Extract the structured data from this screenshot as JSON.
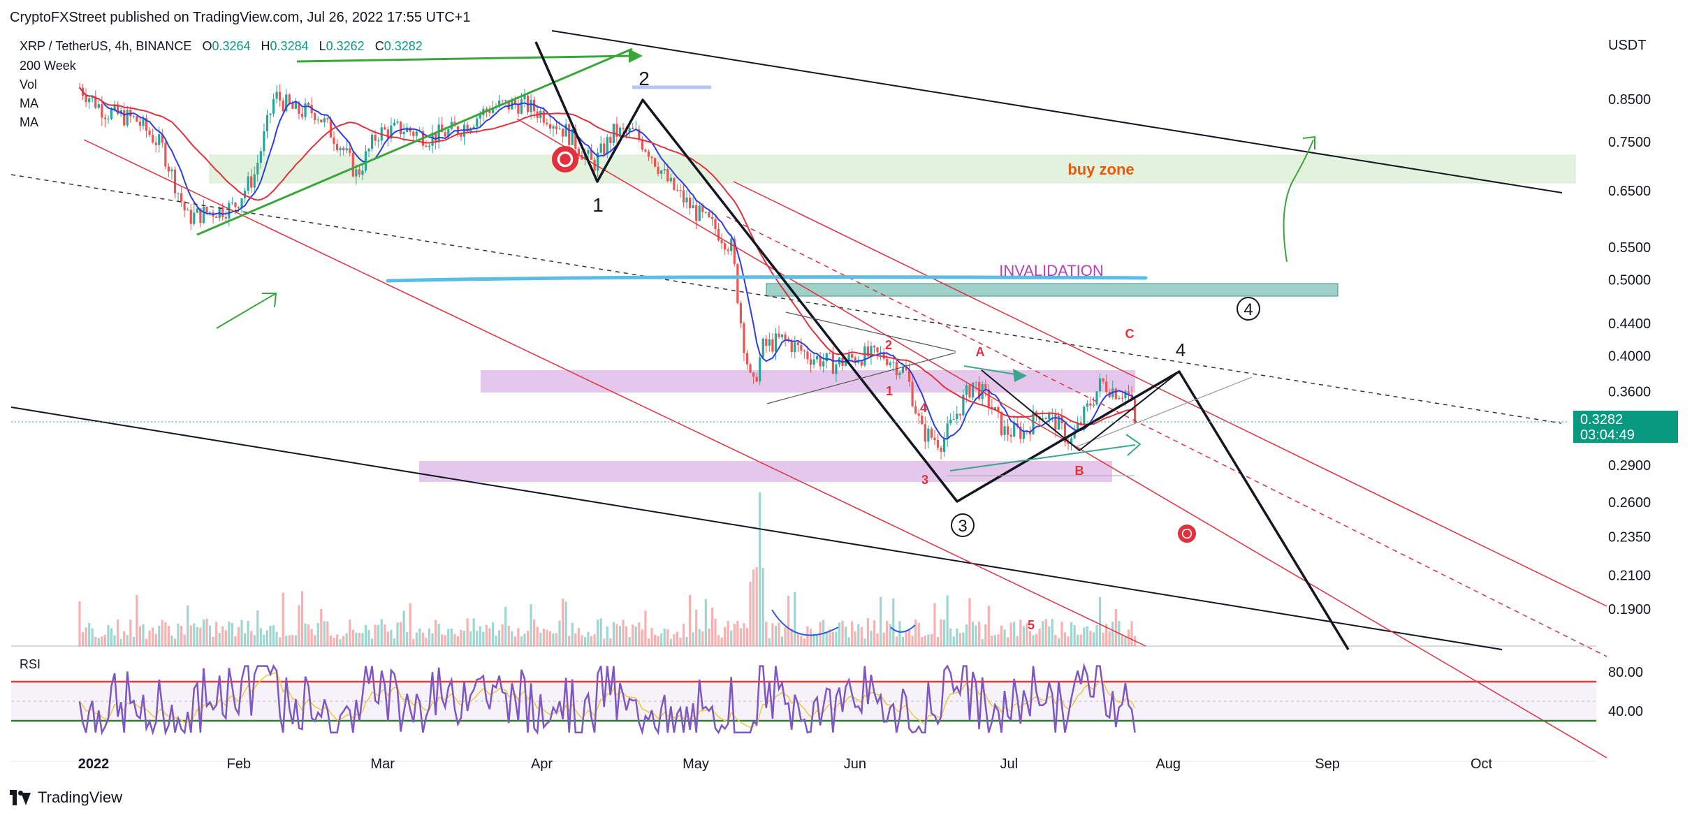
{
  "header": {
    "publisher_line": "CryptoFXStreet published on TradingView.com, Jul 26, 2022 17:55 UTC+1"
  },
  "legend": {
    "symbol": "XRP / TetherUS, 4h, BINANCE",
    "open_label": "O",
    "open": "0.3264",
    "high_label": "H",
    "high": "0.3284",
    "low_label": "L",
    "low": "0.3262",
    "close_label": "C",
    "close": "0.3282",
    "indicators": [
      "200 Week",
      "Vol",
      "MA",
      "MA"
    ]
  },
  "price_axis": {
    "currency": "USDT",
    "ticks": [
      "0.8500",
      "0.7500",
      "0.6500",
      "0.5500",
      "0.5000",
      "0.4400",
      "0.4000",
      "0.3600",
      "0.2900",
      "0.2600",
      "0.2350",
      "0.2100",
      "0.1900"
    ]
  },
  "current_price": {
    "value": "0.3282",
    "countdown": "03:04:49"
  },
  "time_axis": {
    "labels": [
      "2022",
      "Feb",
      "Mar",
      "Apr",
      "May",
      "Jun",
      "Jul",
      "Aug",
      "Sep",
      "Oct"
    ]
  },
  "rsi": {
    "label": "RSI",
    "ticks": [
      "80.00",
      "40.00"
    ],
    "upper_band": 70,
    "lower_band": 30
  },
  "annotations": {
    "buy_zone": "buy zone",
    "invalidation": "INVALIDATION",
    "wave_1": "1",
    "wave_2": "2",
    "wave_3_circled": "3",
    "wave_4_circled": "4",
    "wave_4": "4",
    "sub_a": "A",
    "sub_b": "B",
    "sub_c": "C",
    "small_1": "1",
    "small_2": "2",
    "small_3": "3",
    "small_4": "4",
    "small_5": "5"
  },
  "footer": {
    "brand": "TradingView"
  },
  "colors": {
    "up": "#26a69a",
    "down": "#ef5350",
    "ma_blue": "#2b3ee0",
    "ma_red": "#e0313d",
    "buy_zone_fill": "#e3f2dd",
    "invalidation_line": "#5bbce4",
    "teal_box": "#9fd1c8",
    "magenta_box": "#e6c7ec",
    "rsi_line": "#7e57c2",
    "green": "#3aa63a",
    "orange": "#e8590c"
  },
  "chart_data": {
    "type": "candlestick",
    "title": "XRP / TetherUS, 4h, BINANCE",
    "ylabel": "USDT",
    "y_scale": "log",
    "ylim": [
      0.17,
      0.96
    ],
    "price_path": [
      [
        "2022-01-01",
        0.88
      ],
      [
        "2022-01-06",
        0.82
      ],
      [
        "2022-01-12",
        0.8
      ],
      [
        "2022-01-17",
        0.74
      ],
      [
        "2022-01-22",
        0.6
      ],
      [
        "2022-01-26",
        0.61
      ],
      [
        "2022-01-31",
        0.62
      ],
      [
        "2022-02-04",
        0.68
      ],
      [
        "2022-02-08",
        0.86
      ],
      [
        "2022-02-12",
        0.82
      ],
      [
        "2022-02-16",
        0.82
      ],
      [
        "2022-02-21",
        0.74
      ],
      [
        "2022-02-24",
        0.68
      ],
      [
        "2022-02-28",
        0.77
      ],
      [
        "2022-03-05",
        0.78
      ],
      [
        "2022-03-10",
        0.76
      ],
      [
        "2022-03-16",
        0.78
      ],
      [
        "2022-03-22",
        0.83
      ],
      [
        "2022-03-28",
        0.84
      ],
      [
        "2022-04-02",
        0.81
      ],
      [
        "2022-04-06",
        0.77
      ],
      [
        "2022-04-11",
        0.7
      ],
      [
        "2022-04-15",
        0.77
      ],
      [
        "2022-04-19",
        0.77
      ],
      [
        "2022-04-22",
        0.73
      ],
      [
        "2022-04-26",
        0.66
      ],
      [
        "2022-05-01",
        0.61
      ],
      [
        "2022-05-05",
        0.58
      ],
      [
        "2022-05-08",
        0.55
      ],
      [
        "2022-05-10",
        0.43
      ],
      [
        "2022-05-12",
        0.36
      ],
      [
        "2022-05-14",
        0.41
      ],
      [
        "2022-05-18",
        0.42
      ],
      [
        "2022-05-23",
        0.4
      ],
      [
        "2022-05-28",
        0.39
      ],
      [
        "2022-06-02",
        0.4
      ],
      [
        "2022-06-07",
        0.4
      ],
      [
        "2022-06-11",
        0.38
      ],
      [
        "2022-06-14",
        0.32
      ],
      [
        "2022-06-18",
        0.31
      ],
      [
        "2022-06-22",
        0.35
      ],
      [
        "2022-06-24",
        0.37
      ],
      [
        "2022-06-27",
        0.35
      ],
      [
        "2022-06-30",
        0.32
      ],
      [
        "2022-07-04",
        0.32
      ],
      [
        "2022-07-07",
        0.34
      ],
      [
        "2022-07-10",
        0.33
      ],
      [
        "2022-07-13",
        0.31
      ],
      [
        "2022-07-16",
        0.34
      ],
      [
        "2022-07-19",
        0.37
      ],
      [
        "2022-07-22",
        0.36
      ],
      [
        "2022-07-24",
        0.36
      ],
      [
        "2022-07-26",
        0.3282
      ]
    ]
  }
}
